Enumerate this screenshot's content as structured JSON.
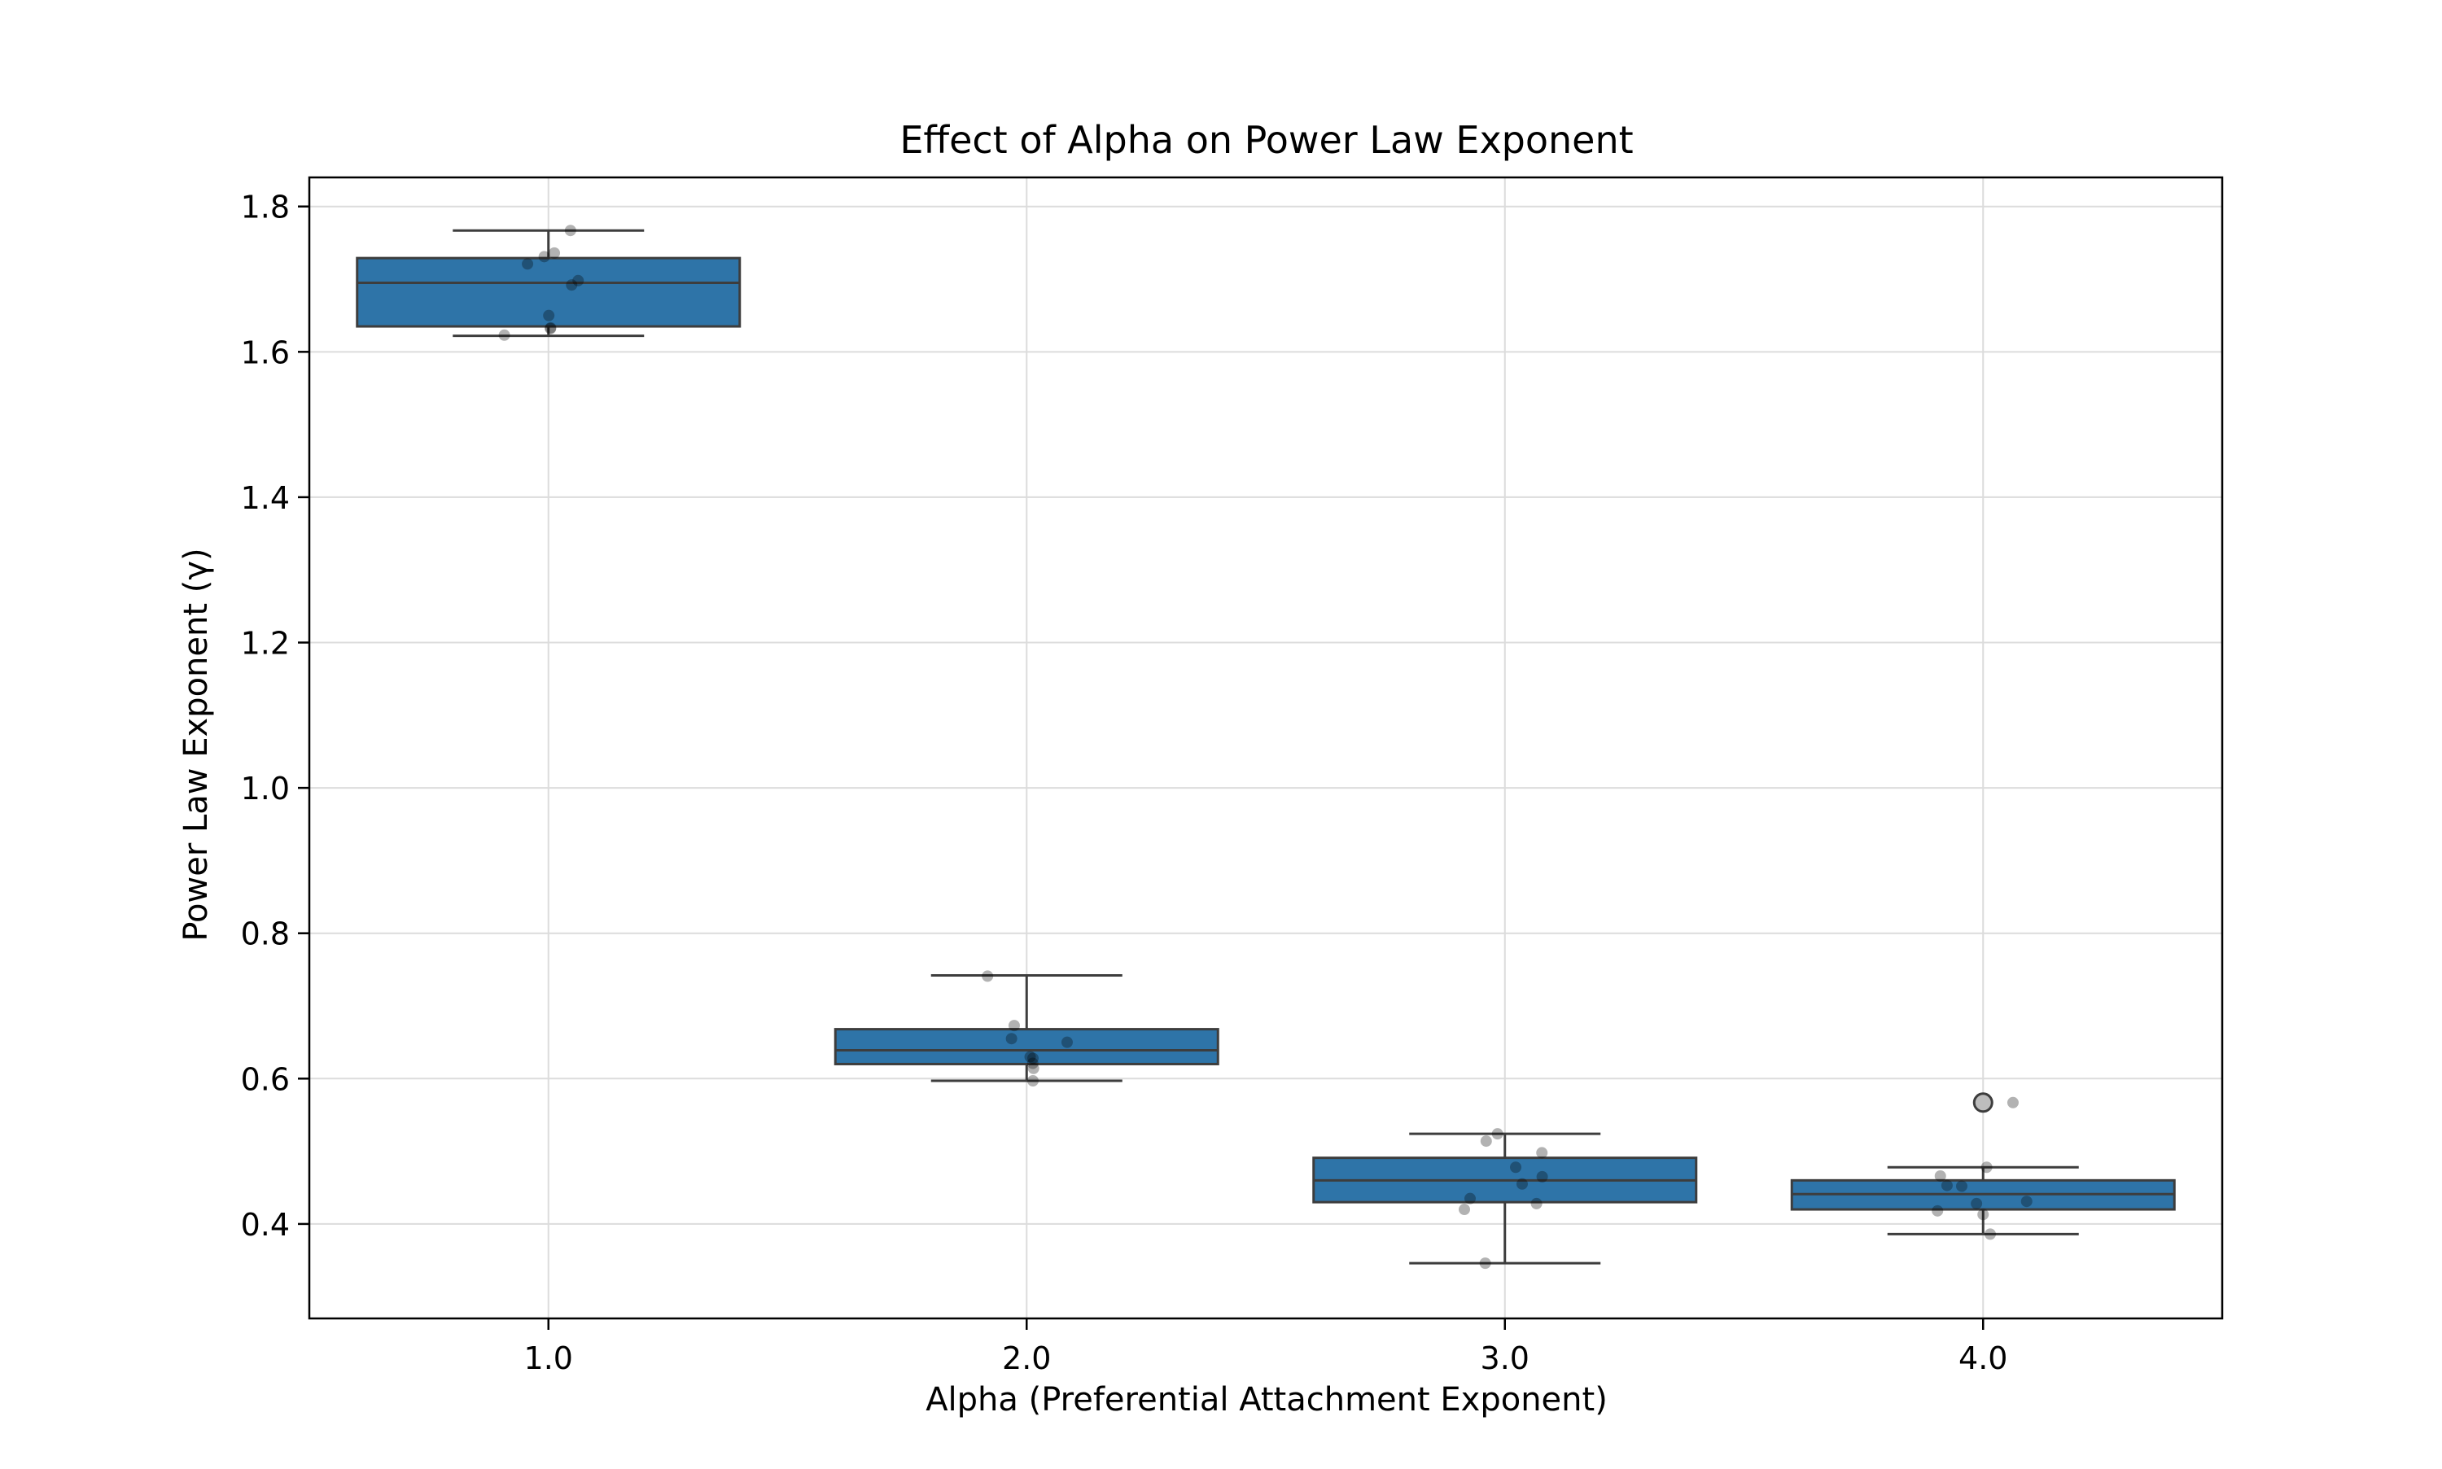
{
  "chart_data": {
    "type": "box",
    "title": "Effect of Alpha on Power Law Exponent",
    "xlabel": "Alpha (Preferential Attachment Exponent)",
    "ylabel": "Power Law Exponent (γ)",
    "categories": [
      "1.0",
      "2.0",
      "3.0",
      "4.0"
    ],
    "ylim": [
      0.27,
      1.84
    ],
    "yticks": [
      0.4,
      0.6,
      0.8,
      1.0,
      1.2,
      1.4,
      1.6,
      1.8
    ],
    "ytick_labels": [
      "0.4",
      "0.6",
      "0.8",
      "1.0",
      "1.2",
      "1.4",
      "1.6",
      "1.8"
    ],
    "grid": true,
    "box_color": "#2e74a8",
    "edge_color": "#3d3d3d",
    "boxes": [
      {
        "category": "1.0",
        "whisker_low": 1.622,
        "q1": 1.635,
        "median": 1.695,
        "q3": 1.729,
        "whisker_high": 1.767,
        "outliers": []
      },
      {
        "category": "2.0",
        "whisker_low": 0.597,
        "q1": 0.62,
        "median": 0.639,
        "q3": 0.668,
        "whisker_high": 0.742,
        "outliers": []
      },
      {
        "category": "3.0",
        "whisker_low": 0.346,
        "q1": 0.43,
        "median": 0.46,
        "q3": 0.491,
        "whisker_high": 0.524,
        "outliers": []
      },
      {
        "category": "4.0",
        "whisker_low": 0.386,
        "q1": 0.42,
        "median": 0.441,
        "q3": 0.46,
        "whisker_high": 0.478,
        "outliers": [
          0.567
        ]
      }
    ],
    "points": [
      {
        "category": "1.0",
        "values": [
          1.767,
          1.736,
          1.731,
          1.721,
          1.698,
          1.692,
          1.65,
          1.633,
          1.632,
          1.623
        ]
      },
      {
        "category": "2.0",
        "values": [
          0.741,
          0.673,
          0.655,
          0.65,
          0.63,
          0.628,
          0.621,
          0.614,
          0.597
        ]
      },
      {
        "category": "3.0",
        "values": [
          0.524,
          0.514,
          0.498,
          0.478,
          0.465,
          0.455,
          0.435,
          0.428,
          0.42,
          0.346
        ]
      },
      {
        "category": "4.0",
        "values": [
          0.567,
          0.478,
          0.466,
          0.453,
          0.452,
          0.431,
          0.428,
          0.418,
          0.413,
          0.386
        ]
      }
    ]
  }
}
